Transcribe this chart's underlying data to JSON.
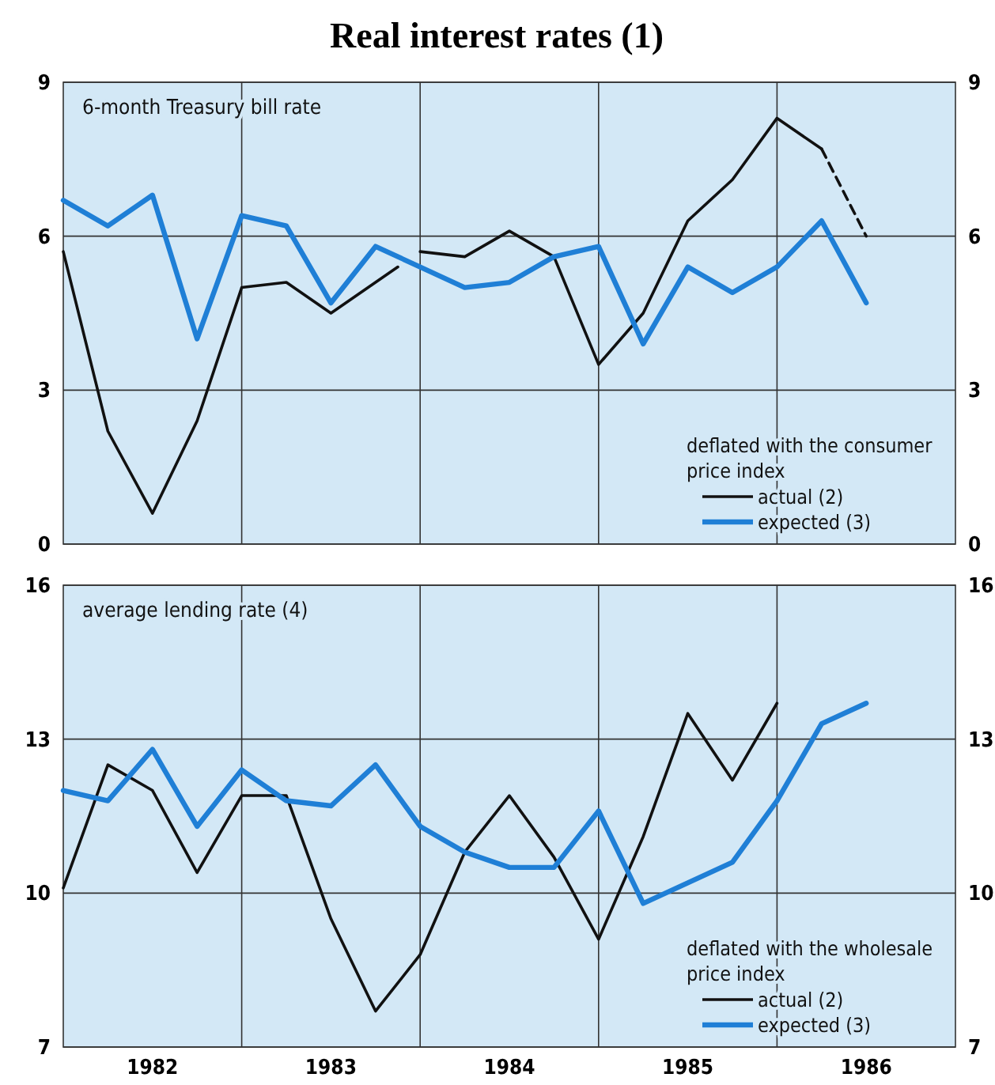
{
  "chart_data": [
    {
      "type": "line",
      "title": "Real interest rates (1)",
      "subtitle": "6-month Treasury bill rate",
      "legend_title": "deflated with the consumer price index",
      "xlim": [
        1982,
        1987
      ],
      "xticks": [
        {
          "value": 1983,
          "label": null
        },
        {
          "value": 1984,
          "label": null
        },
        {
          "value": 1985,
          "label": null
        },
        {
          "value": 1986,
          "label": null
        }
      ],
      "ylim": [
        0,
        9
      ],
      "yticks": [
        0,
        3,
        6,
        9
      ],
      "y2lim": [
        0,
        9
      ],
      "y2ticks": [
        0,
        3,
        6,
        9
      ],
      "grid": true,
      "legend": "bottom right",
      "tick_labels": "y",
      "series": [
        {
          "name": "actual (2)",
          "color": "#111111",
          "line_style": "solid",
          "x": [
            1982,
            1982.25,
            1982.5,
            1982.75,
            1983,
            1983.25,
            1983.5,
            1983.75,
            1983.875,
            1983.94,
            1984,
            1984.25,
            1984.5,
            1984.75,
            1985,
            1985.25,
            1985.5,
            1985.75,
            1986,
            1986.25
          ],
          "values": [
            5.7,
            2.2,
            0.6,
            2.4,
            5.0,
            5.1,
            4.5,
            5.1,
            5.4,
            null,
            5.7,
            5.6,
            6.1,
            5.6,
            3.5,
            4.5,
            6.3,
            7.1,
            8.3,
            7.7
          ]
        },
        {
          "color": "#111111",
          "line_style": "dashed",
          "x": [
            1986.25,
            1986.5
          ],
          "values": [
            7.7,
            6.0
          ]
        },
        {
          "name": "expected (3)",
          "color": "#1f7fd6",
          "line_style": "solid",
          "x": [
            1982,
            1982.25,
            1982.5,
            1982.75,
            1983,
            1983.25,
            1983.5,
            1983.75,
            1984,
            1984.25,
            1984.5,
            1984.75,
            1985,
            1985.25,
            1985.5,
            1985.75,
            1986,
            1986.25,
            1986.5
          ],
          "values": [
            6.7,
            6.2,
            6.8,
            4.0,
            6.4,
            6.2,
            4.7,
            5.8,
            5.4,
            5.0,
            5.1,
            5.6,
            5.8,
            3.9,
            5.4,
            4.9,
            5.4,
            6.3,
            4.7
          ]
        }
      ]
    },
    {
      "type": "line",
      "subtitle": "average lending rate (4)",
      "legend_title": "deflated with the wholesale price index",
      "xlim": [
        1982,
        1987
      ],
      "xticks": [
        {
          "value": 1982.5,
          "label": "1982"
        },
        {
          "value": 1983,
          "label": null
        },
        {
          "value": 1983.5,
          "label": "1983"
        },
        {
          "value": 1984,
          "label": null
        },
        {
          "value": 1984.5,
          "label": "1984"
        },
        {
          "value": 1985,
          "label": null
        },
        {
          "value": 1985.5,
          "label": "1985"
        },
        {
          "value": 1986,
          "label": null
        },
        {
          "value": 1986.5,
          "label": "1986"
        }
      ],
      "ylim": [
        7,
        16
      ],
      "yticks": [
        7,
        10,
        13,
        16
      ],
      "y2lim": [
        7,
        16
      ],
      "y2ticks": [
        7,
        10,
        13,
        16
      ],
      "grid": true,
      "legend": "bottom right",
      "series": [
        {
          "name": "actual (2)",
          "color": "#111111",
          "line_style": "solid",
          "x": [
            1982,
            1982.25,
            1982.5,
            1982.75,
            1983,
            1983.25,
            1983.5,
            1983.75,
            1984,
            1984.25,
            1984.5,
            1984.75,
            1985,
            1985.25,
            1985.5,
            1985.75,
            1986
          ],
          "values": [
            10.1,
            12.5,
            12.0,
            10.4,
            11.9,
            11.9,
            9.5,
            7.7,
            8.8,
            10.8,
            11.9,
            10.7,
            9.1,
            11.1,
            13.5,
            12.2,
            13.7
          ]
        },
        {
          "name": "expected (3)",
          "color": "#1f7fd6",
          "line_style": "solid",
          "x": [
            1982,
            1982.25,
            1982.5,
            1982.75,
            1983,
            1983.25,
            1983.5,
            1983.75,
            1984,
            1984.25,
            1984.5,
            1984.75,
            1985,
            1985.25,
            1985.5,
            1985.75,
            1986,
            1986.25,
            1986.5
          ],
          "values": [
            12.0,
            11.8,
            12.8,
            11.3,
            12.4,
            11.8,
            11.7,
            12.5,
            11.3,
            10.8,
            10.5,
            10.5,
            11.6,
            9.8,
            10.2,
            10.6,
            11.8,
            13.3,
            13.7
          ]
        }
      ]
    }
  ]
}
